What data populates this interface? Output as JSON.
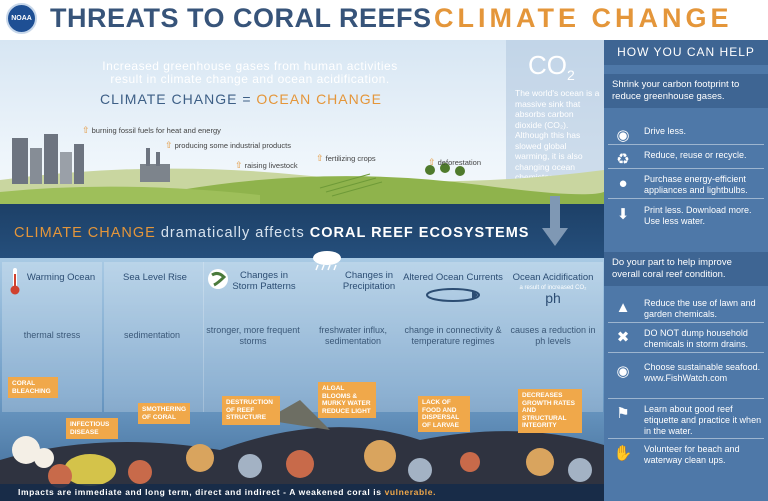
{
  "header": {
    "logo_text": "NOAA",
    "title_main": "THREATS TO CORAL REEFS",
    "title_accent": "CLIMATE CHANGE"
  },
  "sky": {
    "intro_line1": "Increased greenhouse gases from human activities",
    "intro_line2": "result in climate change and ocean acidification.",
    "equation_left": "CLIMATE CHANGE =",
    "equation_right": "OCEAN CHANGE",
    "co2_label": "CO",
    "co2_sub": "2",
    "co2_text": "The world's ocean is a massive sink that absorbs carbon dioxide (CO₂). Although this has slowed global warming, it is also changing ocean chemistry.",
    "activities": [
      "burning fossil fuels for heat and energy",
      "producing some industrial products",
      "raising livestock",
      "fertilizing crops",
      "deforestation"
    ]
  },
  "band": {
    "part1": "CLIMATE CHANGE",
    "part2": " dramatically affects ",
    "part3": "CORAL REEF ECOSYSTEMS"
  },
  "columns": [
    {
      "head": "Warming Ocean",
      "effect": "thermal stress"
    },
    {
      "head": "Sea Level Rise",
      "effect": "sedimentation"
    },
    {
      "head": "Changes in Storm Patterns",
      "effect": "stronger, more frequent storms"
    },
    {
      "head": "Changes in Precipitation",
      "effect": "freshwater influx, sedimentation"
    },
    {
      "head": "Altered Ocean Currents",
      "effect": "change in connectivity & temperature regimes"
    },
    {
      "head": "Ocean Acidification",
      "sub": "a result of increased CO₂",
      "symbol": "ph",
      "effect": "causes a reduction in ph levels"
    }
  ],
  "flags": [
    "CORAL BLEACHING",
    "INFECTIOUS DISEASE",
    "SMOTHERING OF CORAL",
    "DESTRUCTION OF REEF STRUCTURE",
    "ALGAL BLOOMS & MURKY WATER REDUCE LIGHT",
    "LACK OF FOOD AND DISPERSAL OF LARVAE",
    "DECREASES GROWTH RATES AND STRUCTURAL INTEGRITY"
  ],
  "footer": {
    "text": "Impacts are immediate and long term, direct and indirect - A weakened coral is ",
    "highlight": "vulnerable."
  },
  "help": {
    "title": "HOW YOU CAN HELP",
    "section1": "Shrink your carbon footprint to reduce greenhouse gases.",
    "items1": [
      {
        "icon": "bicycle-icon",
        "text": "Drive less."
      },
      {
        "icon": "recycle-icon",
        "text": "Reduce, reuse or recycle."
      },
      {
        "icon": "lightbulb-icon",
        "text": "Purchase energy-efficient appliances and lightbulbs."
      },
      {
        "icon": "download-icon",
        "text": "Print less. Download more. Use less water."
      }
    ],
    "section2": "Do your part to help improve overall coral reef condition.",
    "items2": [
      {
        "icon": "spray-bottle-icon",
        "text": "Reduce the use of lawn and garden chemicals."
      },
      {
        "icon": "no-dumping-icon",
        "text": "DO NOT dump household chemicals in storm drains."
      },
      {
        "icon": "fish-plate-icon",
        "text": "Choose sustainable seafood. www.FishWatch.com"
      },
      {
        "icon": "diver-icon",
        "text": "Learn about good reef etiquette and practice it when in the water."
      },
      {
        "icon": "hands-icon",
        "text": "Volunteer for beach and waterway clean ups."
      }
    ]
  },
  "colors": {
    "navy": "#37547a",
    "orange": "#e4963a",
    "panel": "#4e78a8"
  }
}
